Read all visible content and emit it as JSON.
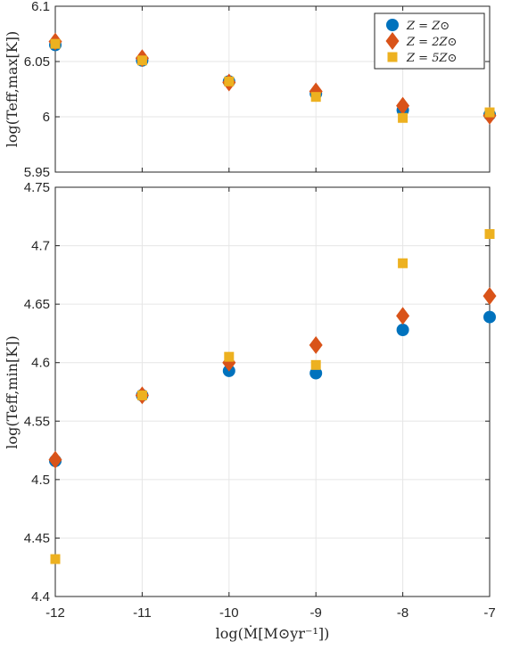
{
  "chart_data": [
    {
      "type": "scatter",
      "xlabel": "log(Ṁ[M⊙yr⁻¹])",
      "ylabel": "log(Teff,max[K])",
      "xlim": [
        -12,
        -7
      ],
      "ylim": [
        5.95,
        6.1
      ],
      "xticks": [
        "",
        "",
        "",
        "",
        "",
        ""
      ],
      "yticks": [
        "5.95",
        "6",
        "6.05",
        "6.1"
      ],
      "grid": true,
      "legend_position": "top-right",
      "x": [
        -12,
        -11,
        -10,
        -9,
        -8,
        -7
      ],
      "series": [
        {
          "name": "Z = Z⊙",
          "marker": "circle",
          "color": "#0072BD",
          "values": [
            6.065,
            6.051,
            6.032,
            6.021,
            6.006,
            6.002
          ]
        },
        {
          "name": "Z = 2Z⊙",
          "marker": "diamond",
          "color": "#D95319",
          "values": [
            6.068,
            6.053,
            6.031,
            6.023,
            6.01,
            6.001
          ]
        },
        {
          "name": "Z = 5Z⊙",
          "marker": "square",
          "color": "#EDB120",
          "values": [
            6.066,
            6.051,
            6.032,
            6.018,
            5.999,
            6.004
          ]
        }
      ]
    },
    {
      "type": "scatter",
      "xlabel": "log(Ṁ[M⊙yr⁻¹])",
      "ylabel": "log(Teff,min[K])",
      "xlim": [
        -12,
        -7
      ],
      "ylim": [
        4.4,
        4.75
      ],
      "xticks": [
        "-12",
        "-11",
        "-10",
        "-9",
        "-8",
        "-7"
      ],
      "yticks": [
        "4.4",
        "4.45",
        "4.5",
        "4.55",
        "4.6",
        "4.65",
        "4.7",
        "4.75"
      ],
      "grid": true,
      "x": [
        -12,
        -11,
        -10,
        -9,
        -8,
        -7
      ],
      "series": [
        {
          "name": "Z = Z⊙",
          "marker": "circle",
          "color": "#0072BD",
          "values": [
            4.516,
            4.572,
            4.593,
            4.591,
            4.628,
            4.639
          ]
        },
        {
          "name": "Z = 2Z⊙",
          "marker": "diamond",
          "color": "#D95319",
          "values": [
            4.517,
            4.572,
            4.6,
            4.615,
            4.64,
            4.657
          ]
        },
        {
          "name": "Z = 5Z⊙",
          "marker": "square",
          "color": "#EDB120",
          "values": [
            4.432,
            4.572,
            4.605,
            4.598,
            4.685,
            4.71
          ]
        }
      ]
    }
  ],
  "legend": {
    "entries": [
      {
        "label": "Z = Z⊙",
        "marker": "circle",
        "color": "#0072BD"
      },
      {
        "label": "Z = 2Z⊙",
        "marker": "diamond",
        "color": "#D95319"
      },
      {
        "label": "Z = 5Z⊙",
        "marker": "square",
        "color": "#EDB120"
      }
    ]
  },
  "colors": {
    "axes": "#262626",
    "grid": "#e6e6e6"
  }
}
